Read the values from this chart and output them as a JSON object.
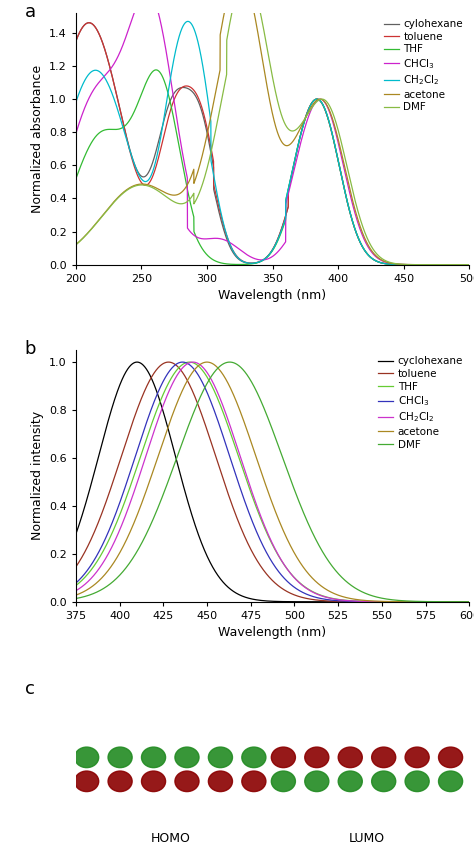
{
  "abs_colors": [
    "#606060",
    "#cc3333",
    "#33bb33",
    "#cc22cc",
    "#00bbcc",
    "#aa8822",
    "#88bb44"
  ],
  "emi_colors": [
    "#000000",
    "#993322",
    "#66cc33",
    "#3333bb",
    "#cc33cc",
    "#aa8822",
    "#44aa33"
  ],
  "abs_xlim": [
    200,
    500
  ],
  "abs_ylim": [
    0.0,
    1.52
  ],
  "abs_yticks": [
    0.0,
    0.2,
    0.4,
    0.6,
    0.8,
    1.0,
    1.2,
    1.4
  ],
  "emi_peaks": [
    410,
    428,
    440,
    436,
    442,
    450,
    463
  ],
  "emi_widths": [
    22,
    27,
    28,
    27,
    27,
    28,
    30
  ],
  "emi_xlim": [
    375,
    600
  ],
  "emi_ylim": [
    0.0,
    1.05
  ],
  "emi_yticks": [
    0.0,
    0.2,
    0.4,
    0.6,
    0.8,
    1.0
  ],
  "xlabel_abs": "Wavelength (nm)",
  "xlabel_emi": "Wavelength (nm)",
  "ylabel_abs": "Normalized absorbance",
  "ylabel_emi": "Normalized intensity",
  "legend_abs": [
    "cylohexane",
    "toluene",
    "THF",
    "CHCl$_3$",
    "CH$_2$Cl$_2$",
    "acetone",
    "DMF"
  ],
  "legend_emi": [
    "cyclohexane",
    "toluene",
    "THF",
    "CHCl$_3$",
    "CH$_2$Cl$_2$",
    "acetone",
    "DMF"
  ],
  "label_a": "a",
  "label_b": "b",
  "label_c": "c"
}
